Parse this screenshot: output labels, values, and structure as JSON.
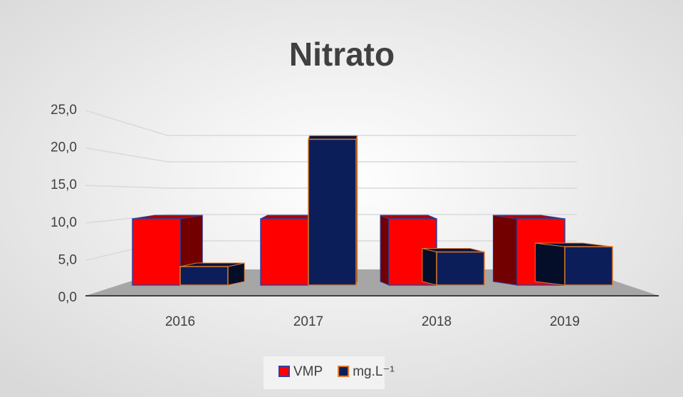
{
  "chart_data": {
    "type": "bar3d",
    "title": "Nitrato",
    "categories": [
      "2016",
      "2017",
      "2018",
      "2019"
    ],
    "series": [
      {
        "name": "VMP",
        "color": "#ff0000",
        "edge": "#3040a0",
        "values": [
          10,
          10,
          10,
          10
        ]
      },
      {
        "name": "mg.L⁻¹",
        "color": "#0c1e5a",
        "edge": "#e0782a",
        "values": [
          2.8,
          22.0,
          5.0,
          5.8
        ]
      }
    ],
    "ylim": [
      0,
      25
    ],
    "yticks": [
      {
        "value": 0,
        "label": "0,0"
      },
      {
        "value": 5,
        "label": "5,0"
      },
      {
        "value": 10,
        "label": "10,0"
      },
      {
        "value": 15,
        "label": "15,0"
      },
      {
        "value": 20,
        "label": "20,0"
      },
      {
        "value": 25,
        "label": "25,0"
      }
    ],
    "grid": true,
    "legend": "bottom"
  }
}
